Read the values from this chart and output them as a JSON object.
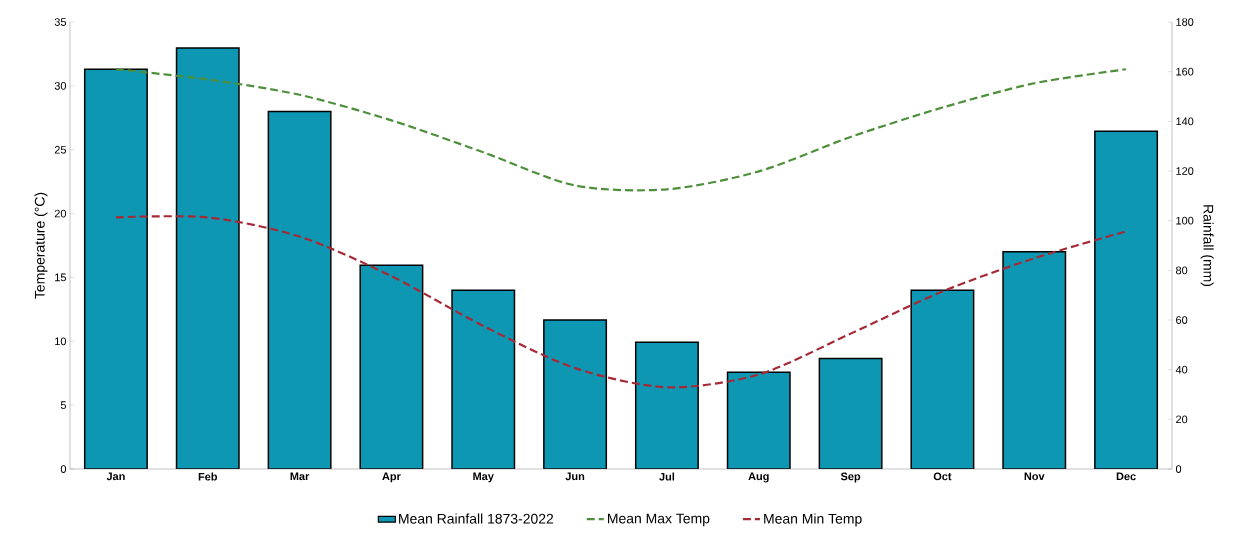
{
  "chart_data": {
    "type": "bar",
    "ylabel": "Temperature (°C)",
    "y2label": "Rainfall (mm)",
    "categories": [
      "Jan",
      "Feb",
      "Mar",
      "Apr",
      "May",
      "Jun",
      "Jul",
      "Aug",
      "Sep",
      "Oct",
      "Nov",
      "Dec"
    ],
    "ylim": [
      0,
      35
    ],
    "yticks": [
      0,
      5,
      10,
      15,
      20,
      25,
      30,
      35
    ],
    "y2lim": [
      0,
      180
    ],
    "y2ticks": [
      0,
      20,
      40,
      60,
      80,
      100,
      120,
      140,
      160,
      180
    ],
    "legend": "bottom",
    "marker": "none",
    "series": [
      {
        "name": "Mean Rainfall 1873-2022",
        "axis": "y2",
        "color": "#0e97b3",
        "values": [
          161,
          169.5,
          144,
          82,
          72,
          60,
          51,
          39,
          44.5,
          72,
          87.5,
          136
        ]
      },
      {
        "name": "Mean Max Temp",
        "type": "line",
        "line_style": "dashed",
        "color": "#4e8f3c",
        "values": [
          31.3,
          30.5,
          29.3,
          27.3,
          24.8,
          22.2,
          21.9,
          23.3,
          26,
          28.3,
          30.2,
          31.3
        ]
      },
      {
        "name": "Mean Min Temp",
        "type": "line",
        "line_style": "dashed",
        "color": "#a52a36",
        "values": [
          19.7,
          19.7,
          18.2,
          15.1,
          11.2,
          7.9,
          6.4,
          7.4,
          10.6,
          13.9,
          16.5,
          18.6
        ]
      }
    ]
  }
}
